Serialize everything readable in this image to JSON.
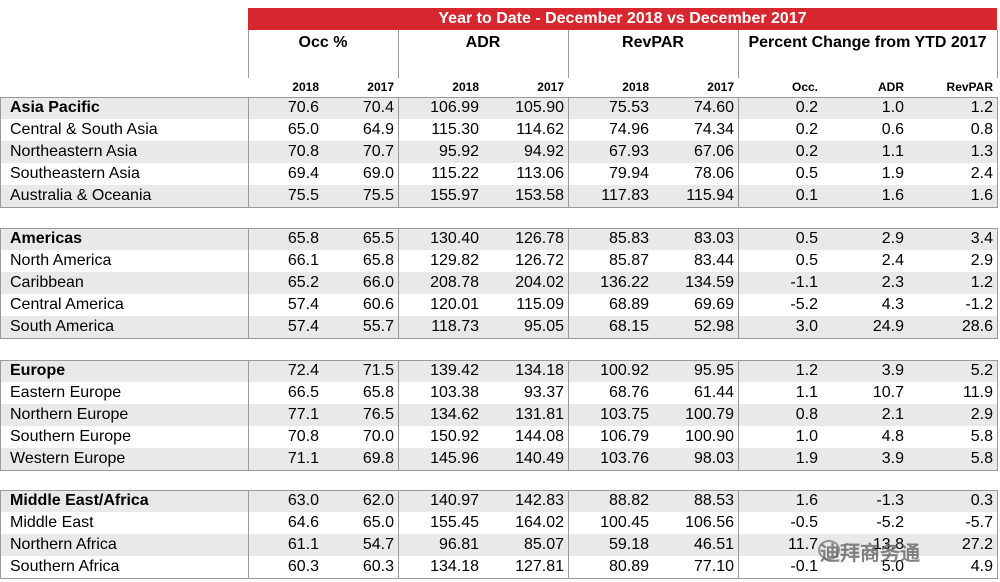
{
  "header": {
    "title": "Year to Date - December 2018 vs December 2017",
    "groups": [
      "Occ %",
      "ADR",
      "RevPAR",
      "Percent Change from YTD 2017"
    ],
    "subheaders": [
      "2018",
      "2017",
      "2018",
      "2017",
      "2018",
      "2017",
      "Occ.",
      "ADR",
      "RevPAR"
    ]
  },
  "sections": [
    {
      "rows": [
        {
          "label": "Asia Pacific",
          "values": [
            "70.6",
            "70.4",
            "106.99",
            "105.90",
            "75.53",
            "74.60",
            "0.2",
            "1.0",
            "1.2"
          ]
        },
        {
          "label": "Central & South Asia",
          "values": [
            "65.0",
            "64.9",
            "115.30",
            "114.62",
            "74.96",
            "74.34",
            "0.2",
            "0.6",
            "0.8"
          ]
        },
        {
          "label": "Northeastern Asia",
          "values": [
            "70.8",
            "70.7",
            "95.92",
            "94.92",
            "67.93",
            "67.06",
            "0.2",
            "1.1",
            "1.3"
          ]
        },
        {
          "label": "Southeastern Asia",
          "values": [
            "69.4",
            "69.0",
            "115.22",
            "113.06",
            "79.94",
            "78.06",
            "0.5",
            "1.9",
            "2.4"
          ]
        },
        {
          "label": "Australia & Oceania",
          "values": [
            "75.5",
            "75.5",
            "155.97",
            "153.58",
            "117.83",
            "115.94",
            "0.1",
            "1.6",
            "1.6"
          ]
        }
      ]
    },
    {
      "rows": [
        {
          "label": "Americas",
          "values": [
            "65.8",
            "65.5",
            "130.40",
            "126.78",
            "85.83",
            "83.03",
            "0.5",
            "2.9",
            "3.4"
          ]
        },
        {
          "label": "North America",
          "values": [
            "66.1",
            "65.8",
            "129.82",
            "126.72",
            "85.87",
            "83.44",
            "0.5",
            "2.4",
            "2.9"
          ]
        },
        {
          "label": "Caribbean",
          "values": [
            "65.2",
            "66.0",
            "208.78",
            "204.02",
            "136.22",
            "134.59",
            "-1.1",
            "2.3",
            "1.2"
          ]
        },
        {
          "label": "Central America",
          "values": [
            "57.4",
            "60.6",
            "120.01",
            "115.09",
            "68.89",
            "69.69",
            "-5.2",
            "4.3",
            "-1.2"
          ]
        },
        {
          "label": "South America",
          "values": [
            "57.4",
            "55.7",
            "118.73",
            "95.05",
            "68.15",
            "52.98",
            "3.0",
            "24.9",
            "28.6"
          ]
        }
      ]
    },
    {
      "rows": [
        {
          "label": "Europe",
          "values": [
            "72.4",
            "71.5",
            "139.42",
            "134.18",
            "100.92",
            "95.95",
            "1.2",
            "3.9",
            "5.2"
          ]
        },
        {
          "label": "Eastern Europe",
          "values": [
            "66.5",
            "65.8",
            "103.38",
            "93.37",
            "68.76",
            "61.44",
            "1.1",
            "10.7",
            "11.9"
          ]
        },
        {
          "label": "Northern Europe",
          "values": [
            "77.1",
            "76.5",
            "134.62",
            "131.81",
            "103.75",
            "100.79",
            "0.8",
            "2.1",
            "2.9"
          ]
        },
        {
          "label": "Southern Europe",
          "values": [
            "70.8",
            "70.0",
            "150.92",
            "144.08",
            "106.79",
            "100.90",
            "1.0",
            "4.8",
            "5.8"
          ]
        },
        {
          "label": "Western Europe",
          "values": [
            "71.1",
            "69.8",
            "145.96",
            "140.49",
            "103.76",
            "98.03",
            "1.9",
            "3.9",
            "5.8"
          ]
        }
      ]
    },
    {
      "rows": [
        {
          "label": "Middle East/Africa",
          "values": [
            "63.0",
            "62.0",
            "140.97",
            "142.83",
            "88.82",
            "88.53",
            "1.6",
            "-1.3",
            "0.3"
          ]
        },
        {
          "label": "Middle East",
          "values": [
            "64.6",
            "65.0",
            "155.45",
            "164.02",
            "100.45",
            "106.56",
            "-0.5",
            "-5.2",
            "-5.7"
          ]
        },
        {
          "label": "Northern Africa",
          "values": [
            "61.1",
            "54.7",
            "96.81",
            "85.07",
            "59.18",
            "46.51",
            "11.7",
            "13.8",
            "27.2"
          ]
        },
        {
          "label": "Southern Africa",
          "values": [
            "60.3",
            "60.3",
            "134.18",
            "127.81",
            "80.89",
            "77.10",
            "-0.1",
            "5.0",
            "4.9"
          ]
        }
      ]
    }
  ],
  "watermark": "迪拜商务通"
}
